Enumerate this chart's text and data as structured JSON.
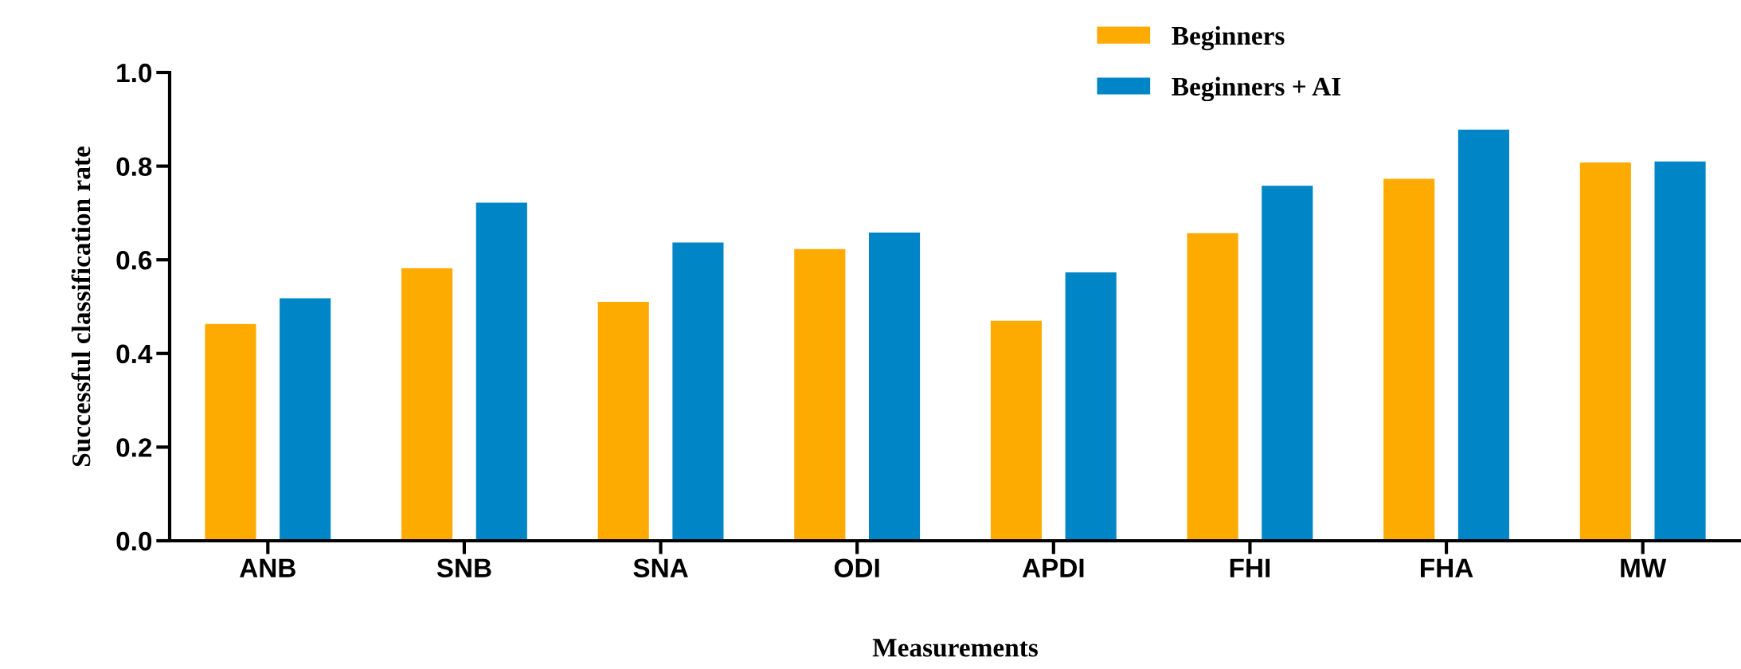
{
  "chart_data": {
    "type": "bar",
    "xlabel": "Measurements",
    "ylabel": "Successful classification rate",
    "categories": [
      "ANB",
      "SNB",
      "SNA",
      "ODI",
      "APDI",
      "FHI",
      "FHA",
      "MW"
    ],
    "series": [
      {
        "name": "Beginners",
        "color": "#fdab00",
        "values": [
          0.463,
          0.582,
          0.51,
          0.623,
          0.47,
          0.657,
          0.773,
          0.808
        ]
      },
      {
        "name": "Beginners + AI",
        "color": "#0085c7",
        "values": [
          0.518,
          0.722,
          0.637,
          0.658,
          0.573,
          0.758,
          0.878,
          0.81
        ]
      }
    ],
    "ylim": [
      0,
      1.0
    ],
    "yticks": [
      {
        "value": 0,
        "label": "0.0"
      },
      {
        "value": 0.2,
        "label": "0.2"
      },
      {
        "value": 0.4,
        "label": "0.4"
      },
      {
        "value": 0.6,
        "label": "0.6"
      },
      {
        "value": 0.8,
        "label": "0.8"
      },
      {
        "value": 1.0,
        "label": "1.0"
      }
    ],
    "grid": false,
    "legend": "top right"
  }
}
